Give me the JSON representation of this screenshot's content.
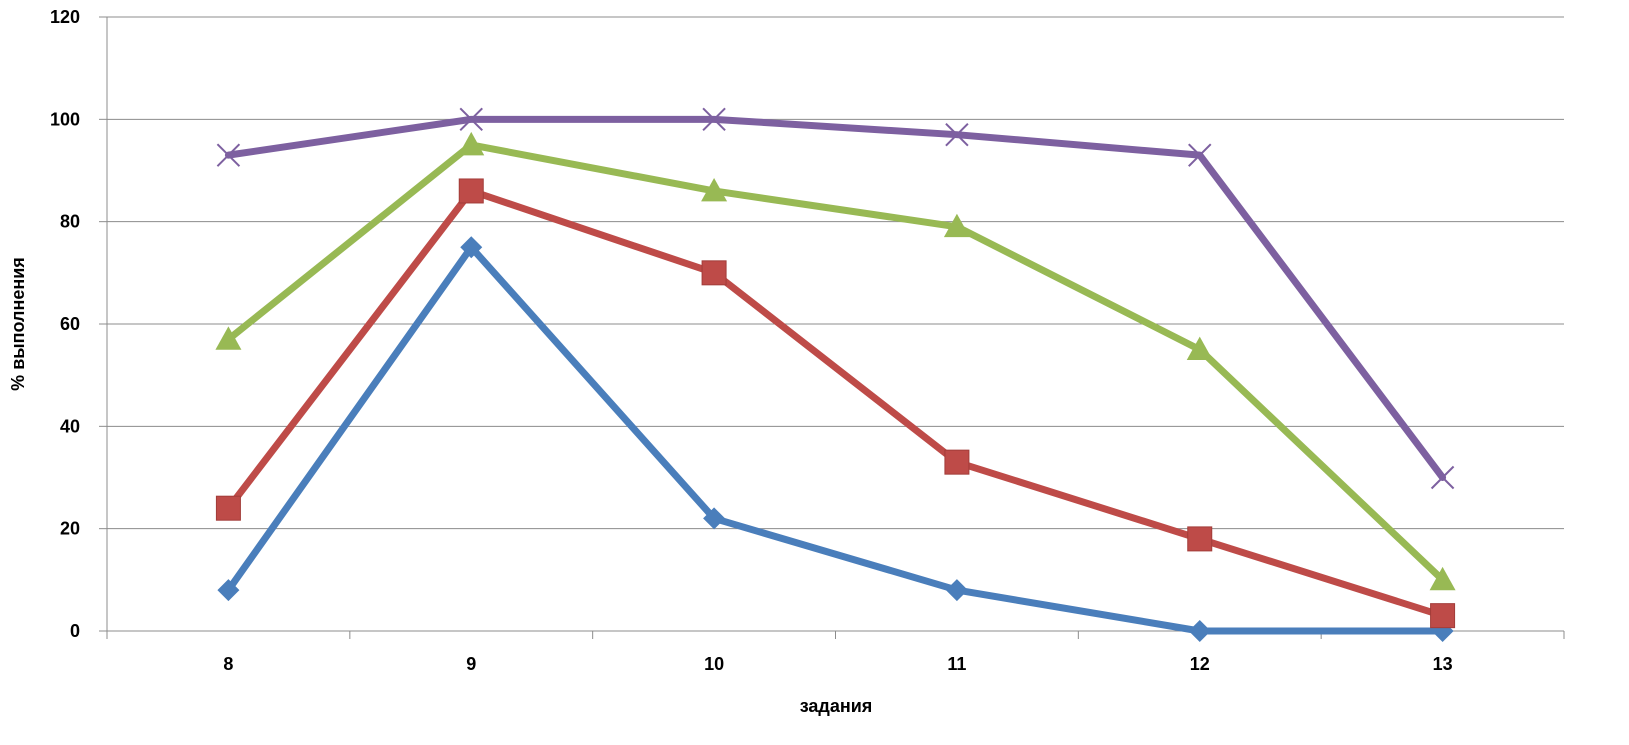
{
  "chart_data": {
    "type": "line",
    "xlabel": "задания",
    "ylabel": "% выполнения",
    "ylim": [
      0,
      120
    ],
    "yticks": [
      0,
      20,
      40,
      60,
      80,
      100,
      120
    ],
    "categories": [
      "8",
      "9",
      "10",
      "11",
      "12",
      "13"
    ],
    "grid": "horizontal",
    "legend": "none",
    "series": [
      {
        "marker": "diamond",
        "color": "#4a7ebb",
        "values": [
          8,
          75,
          22,
          8,
          0,
          0
        ]
      },
      {
        "marker": "square",
        "color": "#be4b48",
        "values": [
          24,
          86,
          70,
          33,
          18,
          3
        ]
      },
      {
        "marker": "triangle",
        "color": "#98b954",
        "values": [
          57,
          95,
          86,
          79,
          55,
          10
        ]
      },
      {
        "marker": "x",
        "color": "#7d60a0",
        "values": [
          93,
          100,
          100,
          97,
          93,
          30
        ]
      }
    ]
  }
}
